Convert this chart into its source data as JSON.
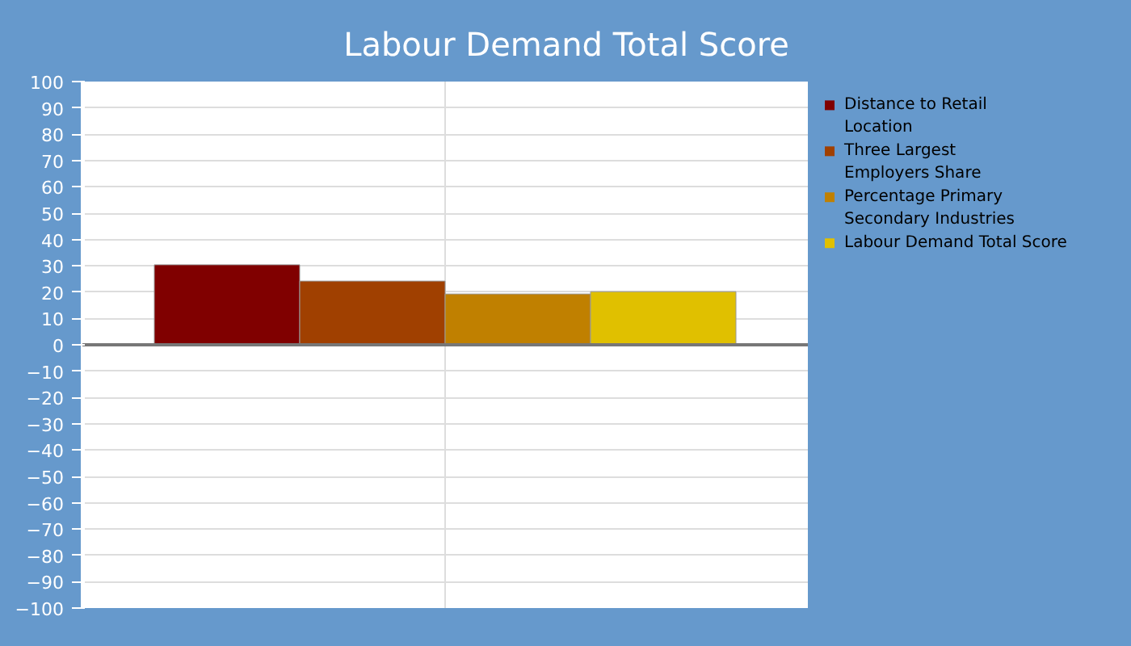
{
  "chart_data": {
    "type": "bar",
    "title": "Labour Demand Total Score",
    "categories": [
      null
    ],
    "series": [
      {
        "name": "Distance to Retail Location",
        "color": "#800000",
        "values": [
          30.4
        ]
      },
      {
        "name": "Three Largest Employers Share",
        "color": "#a04000",
        "values": [
          24.2
        ]
      },
      {
        "name": "Percentage Primary Secondary Industries",
        "color": "#c08000",
        "values": [
          19.3
        ]
      },
      {
        "name": "Labour Demand Total Score",
        "color": "#e0c000",
        "values": [
          20.2
        ]
      }
    ],
    "ylim": [
      -100,
      100
    ],
    "yticks": [
      -100,
      -90,
      -80,
      -70,
      -60,
      -50,
      -40,
      -30,
      -20,
      -10,
      0,
      10,
      20,
      30,
      40,
      50,
      60,
      70,
      80,
      90,
      100
    ],
    "grid": true,
    "legend": "right"
  }
}
